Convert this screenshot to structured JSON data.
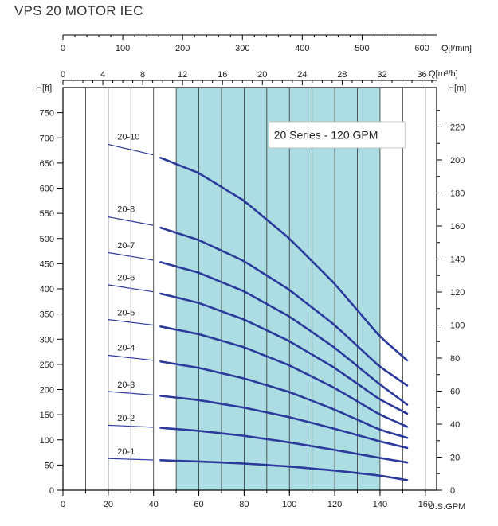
{
  "chart_data": {
    "type": "line",
    "title": "VPS 20 MOTOR IEC",
    "legend_text": "20 Series - 120 GPM",
    "legend_position": "top-right",
    "x_axis": {
      "label": "U.S.GPM",
      "range": [
        0,
        165
      ],
      "ticks": [
        0,
        20,
        40,
        60,
        80,
        100,
        120,
        140,
        160
      ],
      "minor_step": 10
    },
    "top_axis_lmin": {
      "label": "Q[l/min]",
      "ticks": [
        0,
        100,
        200,
        300,
        400,
        500,
        600
      ]
    },
    "top_axis_m3h": {
      "label": "Q[m³/h]",
      "ticks": [
        0,
        4,
        8,
        12,
        16,
        20,
        24,
        28,
        32,
        36
      ]
    },
    "y_axis_ft": {
      "label": "H[ft]",
      "range": [
        0,
        800
      ],
      "ticks": [
        0,
        50,
        100,
        150,
        200,
        250,
        300,
        350,
        400,
        450,
        500,
        550,
        600,
        650,
        700,
        750
      ]
    },
    "y_axis_m": {
      "label": "H[m]",
      "ticks": [
        0,
        20,
        40,
        60,
        80,
        100,
        120,
        140,
        160,
        180,
        200,
        220
      ]
    },
    "recommended_range_gpm": [
      50,
      140
    ],
    "colors": {
      "curve": "#2b3a9b",
      "band": "#abdde2",
      "grid": "#333333"
    },
    "x": [
      20,
      40,
      60,
      80,
      100,
      120,
      140,
      152
    ],
    "series": [
      {
        "name": "20-1",
        "shutoff": 65,
        "values": [
          63,
          60,
          57,
          53,
          47,
          39,
          29,
          20
        ]
      },
      {
        "name": "20-2",
        "shutoff": 131,
        "values": [
          129,
          125,
          118,
          108,
          95,
          80,
          64,
          55
        ]
      },
      {
        "name": "20-3",
        "shutoff": 198,
        "values": [
          196,
          189,
          179,
          164,
          145,
          122,
          97,
          84
        ]
      },
      {
        "name": "20-4",
        "shutoff": 271,
        "values": [
          268,
          258,
          243,
          222,
          195,
          160,
          120,
          104
        ]
      },
      {
        "name": "20-5",
        "shutoff": 341,
        "values": [
          339,
          328,
          310,
          284,
          248,
          203,
          150,
          126
        ]
      },
      {
        "name": "20-6",
        "shutoff": 410,
        "values": [
          408,
          394,
          372,
          339,
          296,
          243,
          180,
          152
        ]
      },
      {
        "name": "20-7",
        "shutoff": 474,
        "values": [
          472,
          457,
          432,
          395,
          345,
          283,
          210,
          170
        ]
      },
      {
        "name": "20-8",
        "shutoff": 546,
        "values": [
          543,
          526,
          497,
          455,
          398,
          328,
          245,
          208
        ]
      },
      {
        "name": "20-10",
        "shutoff": 690,
        "values": [
          687,
          666,
          630,
          575,
          500,
          410,
          305,
          258
        ]
      }
    ]
  }
}
